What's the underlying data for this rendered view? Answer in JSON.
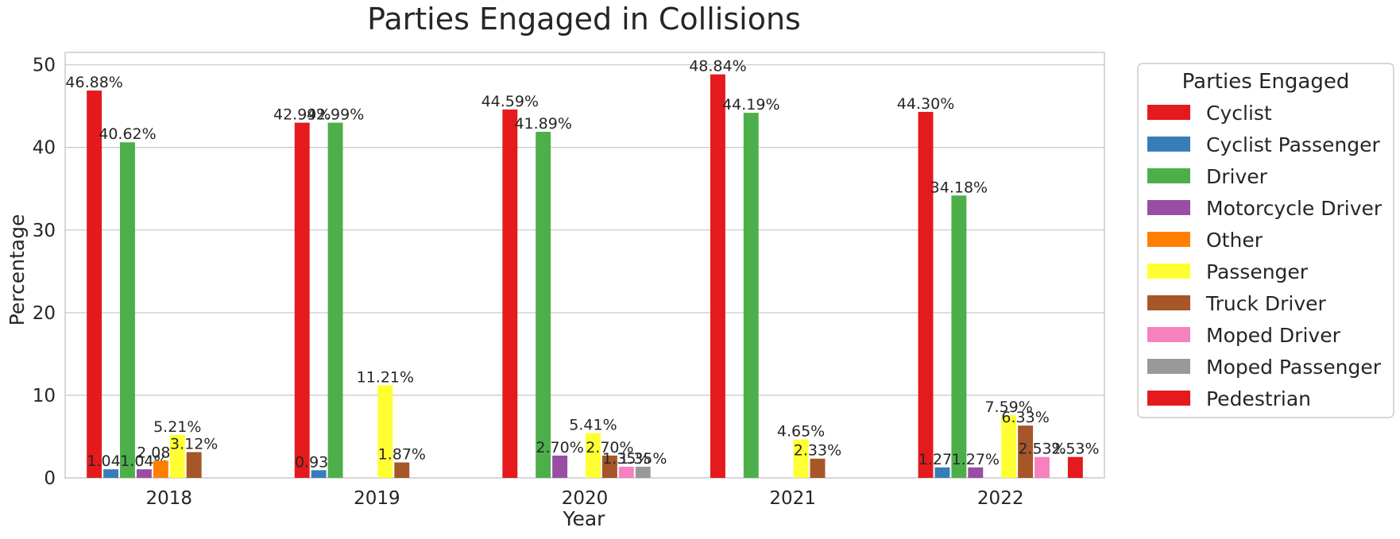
{
  "chart_data": {
    "type": "bar",
    "title": "Parties Engaged in Collisions",
    "xlabel": "Year",
    "ylabel": "Percentage",
    "ylim": [
      0,
      51.5
    ],
    "yticks": [
      0,
      10,
      20,
      30,
      40,
      50
    ],
    "grid": true,
    "legend_title": "Parties Engaged",
    "legend_position": "outside-right",
    "categories": [
      "2018",
      "2019",
      "2020",
      "2021",
      "2022"
    ],
    "series": [
      {
        "name": "Cyclist",
        "color": "#e41a1c",
        "values": [
          46.88,
          42.99,
          44.59,
          48.84,
          44.3
        ]
      },
      {
        "name": "Cyclist Passenger",
        "color": "#377eb8",
        "values": [
          1.04,
          0.93,
          null,
          null,
          1.27
        ]
      },
      {
        "name": "Driver",
        "color": "#4daf4a",
        "values": [
          40.62,
          42.99,
          41.89,
          44.19,
          34.18
        ]
      },
      {
        "name": "Motorcycle Driver",
        "color": "#984ea3",
        "values": [
          1.04,
          null,
          2.7,
          null,
          1.27
        ]
      },
      {
        "name": "Other",
        "color": "#ff7f00",
        "values": [
          2.08,
          null,
          null,
          null,
          null
        ]
      },
      {
        "name": "Passenger",
        "color": "#ffff33",
        "values": [
          5.21,
          11.21,
          5.41,
          4.65,
          7.59
        ]
      },
      {
        "name": "Truck Driver",
        "color": "#a65628",
        "values": [
          3.12,
          1.87,
          2.7,
          2.33,
          6.33
        ]
      },
      {
        "name": "Moped Driver",
        "color": "#f781bf",
        "values": [
          null,
          null,
          1.35,
          null,
          2.53
        ]
      },
      {
        "name": "Moped Passenger",
        "color": "#999999",
        "values": [
          null,
          null,
          1.35,
          null,
          null
        ]
      },
      {
        "name": "Pedestrian",
        "color": "#e41a1c",
        "values": [
          null,
          null,
          null,
          null,
          2.53
        ]
      }
    ]
  }
}
